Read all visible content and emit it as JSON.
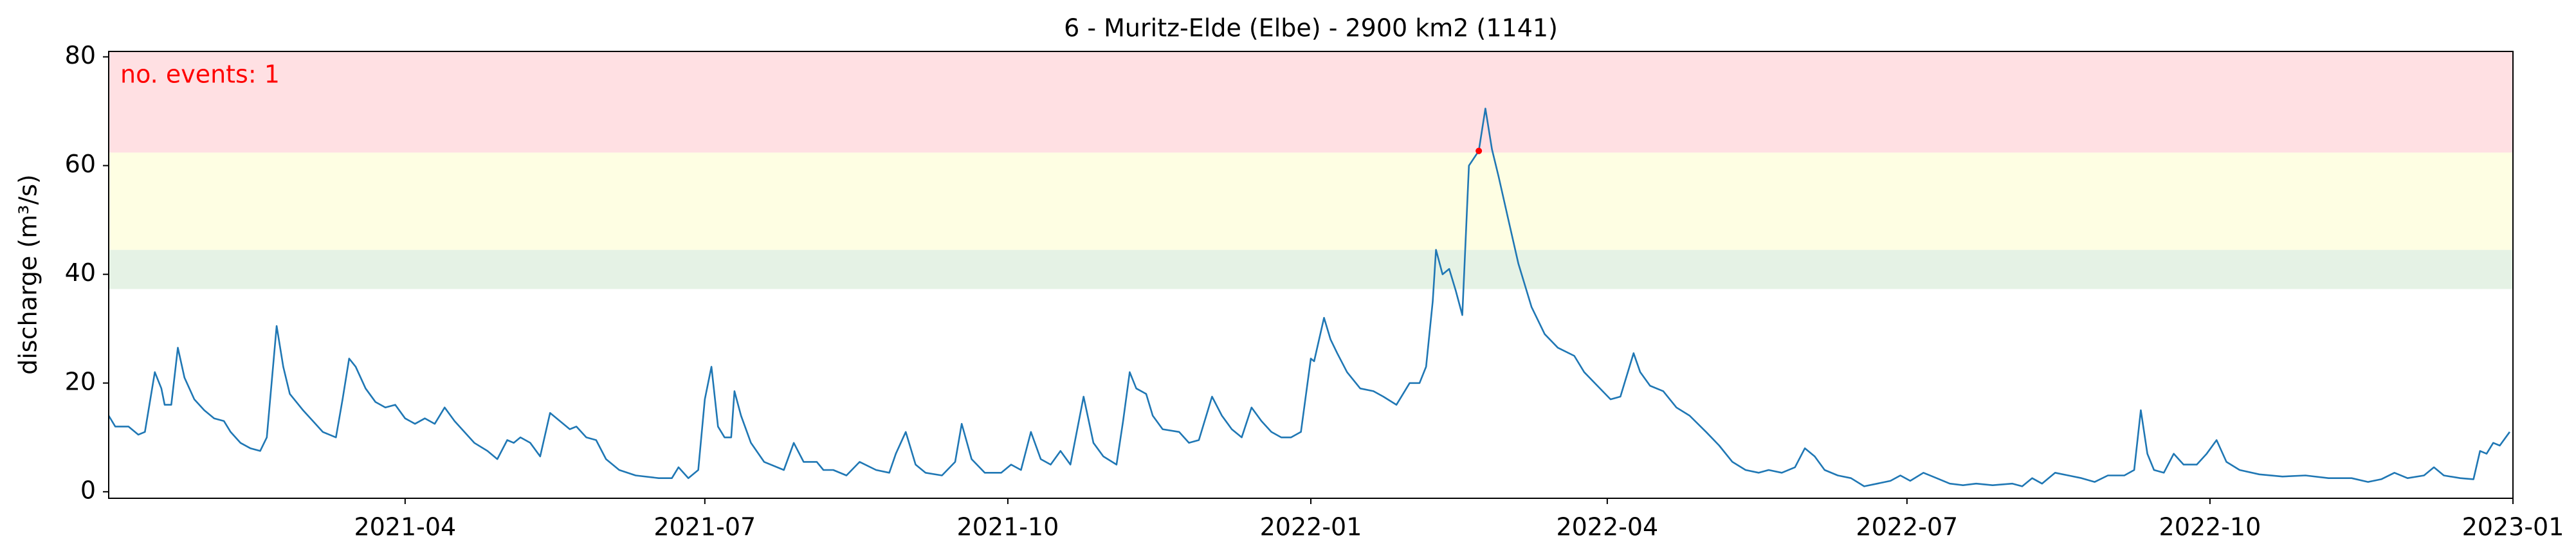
{
  "chart_data": {
    "type": "line",
    "title": "6 - Muritz-Elde (Elbe) - 2900 km2 (1141)",
    "ylabel": "discharge (m³/s)",
    "annotation": "no. events: 1",
    "color": "#1f77b4",
    "xlim": [
      "2021-01-01",
      "2023-01-01"
    ],
    "xticks": [
      {
        "value": "2021-04-01",
        "label": "2021-04"
      },
      {
        "value": "2021-07-01",
        "label": "2021-07"
      },
      {
        "value": "2021-10-01",
        "label": "2021-10"
      },
      {
        "value": "2022-01-01",
        "label": "2022-01"
      },
      {
        "value": "2022-04-01",
        "label": "2022-04"
      },
      {
        "value": "2022-07-01",
        "label": "2022-07"
      },
      {
        "value": "2022-10-01",
        "label": "2022-10"
      },
      {
        "value": "2023-01-01",
        "label": "2023-01"
      }
    ],
    "ylim": [
      -1.2,
      81
    ],
    "yticks": [
      0,
      20,
      40,
      60,
      80
    ],
    "bands": [
      {
        "from": 37.3,
        "to": 44.5,
        "color": "#e5f2e5"
      },
      {
        "from": 44.5,
        "to": 62.4,
        "color": "#fefee3"
      },
      {
        "from": 62.4,
        "to": 81,
        "color": "#ffe0e3"
      }
    ],
    "events": {
      "x": [
        "2022-02-21"
      ],
      "values": [
        62.7
      ],
      "color": "#ff0000"
    },
    "x": [
      "2021-01-01",
      "2021-01-03",
      "2021-01-07",
      "2021-01-10",
      "2021-01-12",
      "2021-01-15",
      "2021-01-17",
      "2021-01-18",
      "2021-01-20",
      "2021-01-22",
      "2021-01-24",
      "2021-01-27",
      "2021-01-30",
      "2021-02-02",
      "2021-02-05",
      "2021-02-07",
      "2021-02-10",
      "2021-02-13",
      "2021-02-16",
      "2021-02-18",
      "2021-02-21",
      "2021-02-23",
      "2021-02-25",
      "2021-03-01",
      "2021-03-04",
      "2021-03-07",
      "2021-03-11",
      "2021-03-13",
      "2021-03-15",
      "2021-03-17",
      "2021-03-20",
      "2021-03-23",
      "2021-03-26",
      "2021-03-29",
      "2021-04-01",
      "2021-04-04",
      "2021-04-07",
      "2021-04-10",
      "2021-04-13",
      "2021-04-16",
      "2021-04-19",
      "2021-04-22",
      "2021-04-26",
      "2021-04-29",
      "2021-05-02",
      "2021-05-04",
      "2021-05-06",
      "2021-05-09",
      "2021-05-12",
      "2021-05-15",
      "2021-05-18",
      "2021-05-21",
      "2021-05-23",
      "2021-05-26",
      "2021-05-29",
      "2021-06-01",
      "2021-06-05",
      "2021-06-10",
      "2021-06-17",
      "2021-06-21",
      "2021-06-23",
      "2021-06-26",
      "2021-06-29",
      "2021-07-01",
      "2021-07-03",
      "2021-07-05",
      "2021-07-07",
      "2021-07-09",
      "2021-07-10",
      "2021-07-12",
      "2021-07-15",
      "2021-07-19",
      "2021-07-25",
      "2021-07-28",
      "2021-07-31",
      "2021-08-04",
      "2021-08-06",
      "2021-08-09",
      "2021-08-13",
      "2021-08-17",
      "2021-08-22",
      "2021-08-26",
      "2021-08-28",
      "2021-08-31",
      "2021-09-03",
      "2021-09-06",
      "2021-09-11",
      "2021-09-15",
      "2021-09-17",
      "2021-09-20",
      "2021-09-24",
      "2021-09-29",
      "2021-10-02",
      "2021-10-05",
      "2021-10-08",
      "2021-10-11",
      "2021-10-14",
      "2021-10-17",
      "2021-10-20",
      "2021-10-24",
      "2021-10-27",
      "2021-10-30",
      "2021-11-03",
      "2021-11-05",
      "2021-11-07",
      "2021-11-09",
      "2021-11-12",
      "2021-11-14",
      "2021-11-17",
      "2021-11-22",
      "2021-11-25",
      "2021-11-28",
      "2021-12-02",
      "2021-12-05",
      "2021-12-08",
      "2021-12-11",
      "2021-12-14",
      "2021-12-17",
      "2021-12-20",
      "2021-12-23",
      "2021-12-26",
      "2021-12-29",
      "2022-01-01",
      "2022-01-02",
      "2022-01-05",
      "2022-01-07",
      "2022-01-09",
      "2022-01-12",
      "2022-01-16",
      "2022-01-20",
      "2022-01-23",
      "2022-01-27",
      "2022-01-31",
      "2022-02-03",
      "2022-02-05",
      "2022-02-07",
      "2022-02-08",
      "2022-02-10",
      "2022-02-12",
      "2022-02-14",
      "2022-02-16",
      "2022-02-18",
      "2022-02-21",
      "2022-02-23",
      "2022-02-25",
      "2022-02-27",
      "2022-03-02",
      "2022-03-05",
      "2022-03-09",
      "2022-03-13",
      "2022-03-17",
      "2022-03-22",
      "2022-03-25",
      "2022-03-29",
      "2022-04-02",
      "2022-04-05",
      "2022-04-09",
      "2022-04-11",
      "2022-04-14",
      "2022-04-18",
      "2022-04-22",
      "2022-04-26",
      "2022-05-01",
      "2022-05-05",
      "2022-05-09",
      "2022-05-13",
      "2022-05-17",
      "2022-05-20",
      "2022-05-24",
      "2022-05-28",
      "2022-05-31",
      "2022-06-03",
      "2022-06-06",
      "2022-06-10",
      "2022-06-14",
      "2022-06-18",
      "2022-06-22",
      "2022-06-26",
      "2022-06-29",
      "2022-07-02",
      "2022-07-06",
      "2022-07-10",
      "2022-07-14",
      "2022-07-18",
      "2022-07-22",
      "2022-07-27",
      "2022-08-02",
      "2022-08-05",
      "2022-08-08",
      "2022-08-11",
      "2022-08-15",
      "2022-08-19",
      "2022-08-23",
      "2022-08-27",
      "2022-08-31",
      "2022-09-05",
      "2022-09-08",
      "2022-09-10",
      "2022-09-12",
      "2022-09-14",
      "2022-09-17",
      "2022-09-20",
      "2022-09-23",
      "2022-09-27",
      "2022-09-30",
      "2022-10-03",
      "2022-10-06",
      "2022-10-10",
      "2022-10-16",
      "2022-10-23",
      "2022-10-30",
      "2022-11-06",
      "2022-11-13",
      "2022-11-18",
      "2022-11-22",
      "2022-11-26",
      "2022-11-30",
      "2022-12-05",
      "2022-12-08",
      "2022-12-11",
      "2022-12-16",
      "2022-12-20",
      "2022-12-22",
      "2022-12-24",
      "2022-12-26",
      "2022-12-28",
      "2022-12-31"
    ],
    "values": [
      14,
      12,
      12,
      10.5,
      11,
      22,
      19,
      16,
      16,
      26.5,
      21,
      17,
      15,
      13.5,
      13,
      11,
      9,
      8,
      7.5,
      10,
      30.5,
      23,
      18,
      15,
      13,
      11,
      10,
      17,
      24.5,
      23,
      19,
      16.5,
      15.5,
      16,
      13.5,
      12.5,
      13.5,
      12.5,
      15.5,
      13,
      11,
      9,
      7.5,
      6,
      9.5,
      9,
      10,
      9,
      6.5,
      14.5,
      13,
      11.5,
      12,
      10,
      9.5,
      6,
      4,
      3,
      2.5,
      2.5,
      4.5,
      2.5,
      4,
      17,
      23,
      12,
      10,
      10,
      18.5,
      14,
      9,
      5.5,
      4,
      9,
      5.5,
      5.5,
      4,
      4,
      3,
      5.5,
      4,
      3.5,
      7,
      11,
      5,
      3.5,
      3,
      5.5,
      12.5,
      6,
      3.5,
      3.5,
      5,
      4,
      11,
      6,
      5,
      7.5,
      5,
      17.5,
      9,
      6.5,
      5,
      13,
      22,
      19,
      18,
      14,
      11.5,
      11,
      9,
      9.5,
      17.5,
      14,
      11.5,
      10,
      15.5,
      13,
      11,
      10,
      10,
      11,
      24.5,
      24,
      32,
      28,
      25.5,
      22,
      19,
      18.5,
      17.5,
      16,
      20,
      20,
      23,
      35,
      44.5,
      40,
      41,
      37,
      32.5,
      60,
      62.7,
      70.5,
      63,
      58,
      50,
      42,
      34,
      29,
      26.5,
      25,
      22,
      19.5,
      17,
      17.5,
      25.5,
      22,
      19.5,
      18.5,
      15.5,
      14,
      11,
      8.5,
      5.5,
      4,
      3.5,
      4,
      3.5,
      4.5,
      8,
      6.5,
      4,
      3,
      2.5,
      1,
      1.5,
      2,
      3,
      2,
      3.5,
      2.5,
      1.5,
      1.2,
      1.5,
      1.2,
      1.5,
      1,
      2.5,
      1.5,
      3.5,
      3,
      2.5,
      1.8,
      3,
      3,
      4,
      15,
      7,
      4,
      3.5,
      7,
      5,
      5,
      7,
      9.5,
      5.5,
      4,
      3.2,
      2.8,
      3,
      2.5,
      2.5,
      1.8,
      2.3,
      3.5,
      2.5,
      3,
      4.5,
      3,
      2.5,
      2.3,
      7.5,
      7,
      9,
      8.5,
      11
    ]
  }
}
